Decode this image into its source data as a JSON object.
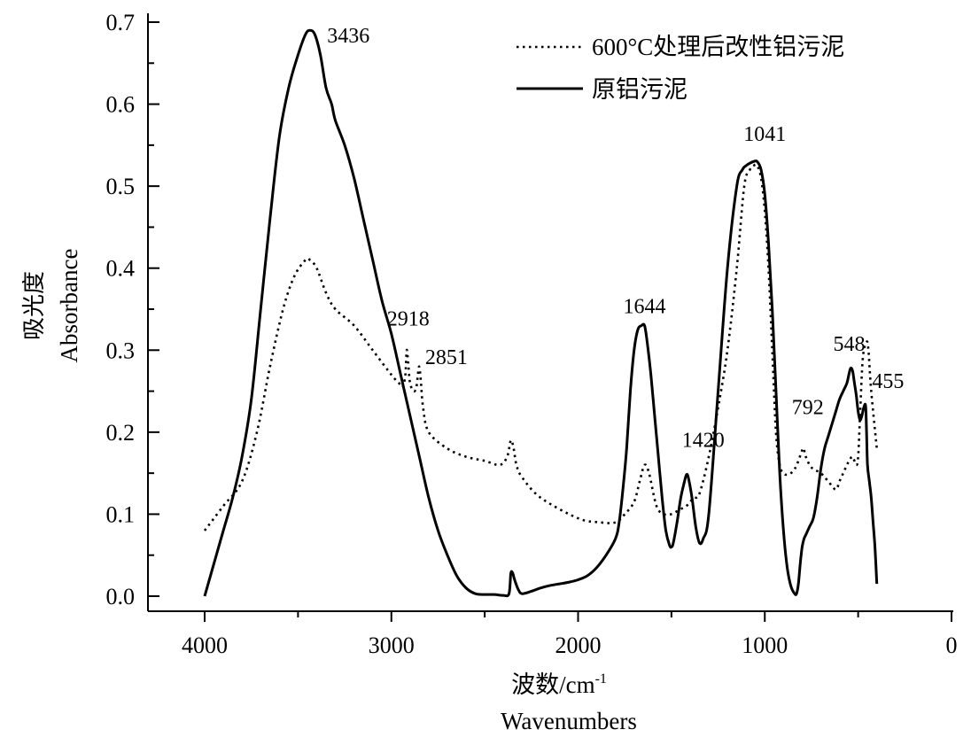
{
  "chart_data": {
    "type": "line",
    "xlabel": "波数/cm",
    "xlabel_sup": "-1",
    "xlabel_en": "Wavenumbers",
    "ylabel": "吸光度",
    "ylabel_en": "Absorbance",
    "xlim": [
      4300,
      0
    ],
    "ylim": [
      -0.015,
      0.7
    ],
    "x_ticks": [
      4000,
      3000,
      2000,
      1000,
      0
    ],
    "x_tick_labels": [
      "4000",
      "3000",
      "2000",
      "1000",
      "0"
    ],
    "y_ticks": [
      0.0,
      0.1,
      0.2,
      0.3,
      0.4,
      0.5,
      0.6,
      0.7
    ],
    "y_tick_labels": [
      "0.0",
      "0.1",
      "0.2",
      "0.3",
      "0.4",
      "0.5",
      "0.6",
      "0.7"
    ],
    "grid": false,
    "legend_position": "top-right",
    "series": [
      {
        "name": "600°C处理后改性铝污泥",
        "style": "dotted",
        "color": "#000000",
        "x": [
          4000,
          3900,
          3800,
          3720,
          3650,
          3580,
          3520,
          3460,
          3436,
          3400,
          3350,
          3300,
          3200,
          3100,
          3000,
          2960,
          2940,
          2925,
          2918,
          2910,
          2900,
          2880,
          2866,
          2858,
          2851,
          2843,
          2830,
          2800,
          2700,
          2600,
          2500,
          2420,
          2380,
          2360,
          2345,
          2330,
          2300,
          2200,
          2000,
          1880,
          1800,
          1750,
          1700,
          1670,
          1644,
          1620,
          1580,
          1540,
          1500,
          1460,
          1420,
          1400,
          1380,
          1350,
          1300,
          1250,
          1200,
          1150,
          1110,
          1080,
          1060,
          1041,
          1020,
          1000,
          980,
          960,
          940,
          920,
          900,
          880,
          860,
          840,
          820,
          800,
          792,
          780,
          760,
          740,
          700,
          660,
          620,
          600,
          580,
          560,
          548,
          530,
          510,
          500,
          490,
          475,
          455,
          445,
          430,
          400
        ],
        "values": [
          0.08,
          0.11,
          0.14,
          0.2,
          0.28,
          0.35,
          0.39,
          0.41,
          0.41,
          0.4,
          0.37,
          0.35,
          0.33,
          0.3,
          0.27,
          0.26,
          0.255,
          0.27,
          0.3,
          0.285,
          0.26,
          0.25,
          0.255,
          0.27,
          0.28,
          0.265,
          0.23,
          0.2,
          0.18,
          0.17,
          0.165,
          0.16,
          0.17,
          0.19,
          0.18,
          0.16,
          0.145,
          0.12,
          0.095,
          0.09,
          0.09,
          0.1,
          0.115,
          0.14,
          0.16,
          0.15,
          0.11,
          0.1,
          0.1,
          0.105,
          0.11,
          0.115,
          0.12,
          0.125,
          0.17,
          0.23,
          0.3,
          0.4,
          0.5,
          0.52,
          0.525,
          0.525,
          0.51,
          0.47,
          0.4,
          0.3,
          0.2,
          0.16,
          0.15,
          0.148,
          0.15,
          0.155,
          0.165,
          0.178,
          0.18,
          0.17,
          0.16,
          0.155,
          0.15,
          0.14,
          0.13,
          0.14,
          0.15,
          0.16,
          0.165,
          0.17,
          0.16,
          0.17,
          0.22,
          0.29,
          0.31,
          0.3,
          0.25,
          0.18
        ]
      },
      {
        "name": "原铝污泥",
        "style": "solid",
        "color": "#000000",
        "x": [
          4000,
          3950,
          3900,
          3850,
          3800,
          3750,
          3700,
          3650,
          3600,
          3550,
          3500,
          3460,
          3436,
          3410,
          3380,
          3350,
          3320,
          3300,
          3250,
          3200,
          3150,
          3100,
          3050,
          3000,
          2950,
          2900,
          2850,
          2800,
          2750,
          2700,
          2650,
          2600,
          2550,
          2500,
          2450,
          2400,
          2370,
          2360,
          2350,
          2340,
          2320,
          2300,
          2250,
          2200,
          2150,
          2100,
          2050,
          2000,
          1950,
          1900,
          1850,
          1800,
          1780,
          1760,
          1740,
          1720,
          1700,
          1680,
          1660,
          1644,
          1630,
          1610,
          1590,
          1570,
          1550,
          1530,
          1510,
          1500,
          1490,
          1470,
          1450,
          1430,
          1420,
          1410,
          1390,
          1370,
          1350,
          1330,
          1300,
          1250,
          1200,
          1150,
          1120,
          1100,
          1080,
          1060,
          1041,
          1020,
          1000,
          980,
          960,
          940,
          920,
          900,
          880,
          860,
          840,
          830,
          820,
          810,
          800,
          790,
          780,
          760,
          740,
          720,
          700,
          680,
          660,
          640,
          620,
          600,
          580,
          560,
          548,
          540,
          530,
          520,
          510,
          500,
          490,
          480,
          470,
          460,
          455,
          450,
          440,
          430,
          420,
          410,
          400
        ],
        "values": [
          0.0,
          0.04,
          0.08,
          0.12,
          0.17,
          0.24,
          0.35,
          0.46,
          0.56,
          0.62,
          0.66,
          0.685,
          0.69,
          0.685,
          0.66,
          0.62,
          0.6,
          0.58,
          0.55,
          0.51,
          0.46,
          0.41,
          0.36,
          0.32,
          0.27,
          0.22,
          0.17,
          0.12,
          0.08,
          0.05,
          0.025,
          0.01,
          0.003,
          0.002,
          0.002,
          0.001,
          0.003,
          0.028,
          0.028,
          0.02,
          0.008,
          0.003,
          0.006,
          0.01,
          0.013,
          0.015,
          0.017,
          0.02,
          0.025,
          0.035,
          0.05,
          0.07,
          0.09,
          0.13,
          0.18,
          0.25,
          0.3,
          0.325,
          0.33,
          0.33,
          0.31,
          0.27,
          0.22,
          0.17,
          0.12,
          0.08,
          0.062,
          0.06,
          0.065,
          0.09,
          0.12,
          0.14,
          0.148,
          0.145,
          0.12,
          0.085,
          0.065,
          0.07,
          0.1,
          0.25,
          0.4,
          0.5,
          0.52,
          0.525,
          0.528,
          0.53,
          0.53,
          0.52,
          0.49,
          0.43,
          0.35,
          0.25,
          0.15,
          0.08,
          0.035,
          0.012,
          0.003,
          0.003,
          0.015,
          0.04,
          0.06,
          0.07,
          0.075,
          0.085,
          0.095,
          0.12,
          0.155,
          0.18,
          0.195,
          0.21,
          0.225,
          0.24,
          0.25,
          0.26,
          0.272,
          0.278,
          0.275,
          0.26,
          0.245,
          0.225,
          0.215,
          0.22,
          0.23,
          0.232,
          0.2,
          0.16,
          0.14,
          0.12,
          0.09,
          0.06,
          0.015
        ]
      }
    ],
    "annotations": [
      {
        "text": "3436",
        "x": 3230,
        "y": 0.675
      },
      {
        "text": "2918",
        "x": 2910,
        "y": 0.33
      },
      {
        "text": "2851",
        "x": 2705,
        "y": 0.283
      },
      {
        "text": "1644",
        "x": 1644,
        "y": 0.345
      },
      {
        "text": "1420",
        "x": 1330,
        "y": 0.182
      },
      {
        "text": "1041",
        "x": 1000,
        "y": 0.555
      },
      {
        "text": "792",
        "x": 770,
        "y": 0.222
      },
      {
        "text": "548",
        "x": 548,
        "y": 0.299
      },
      {
        "text": "455",
        "x": 340,
        "y": 0.254
      }
    ]
  }
}
